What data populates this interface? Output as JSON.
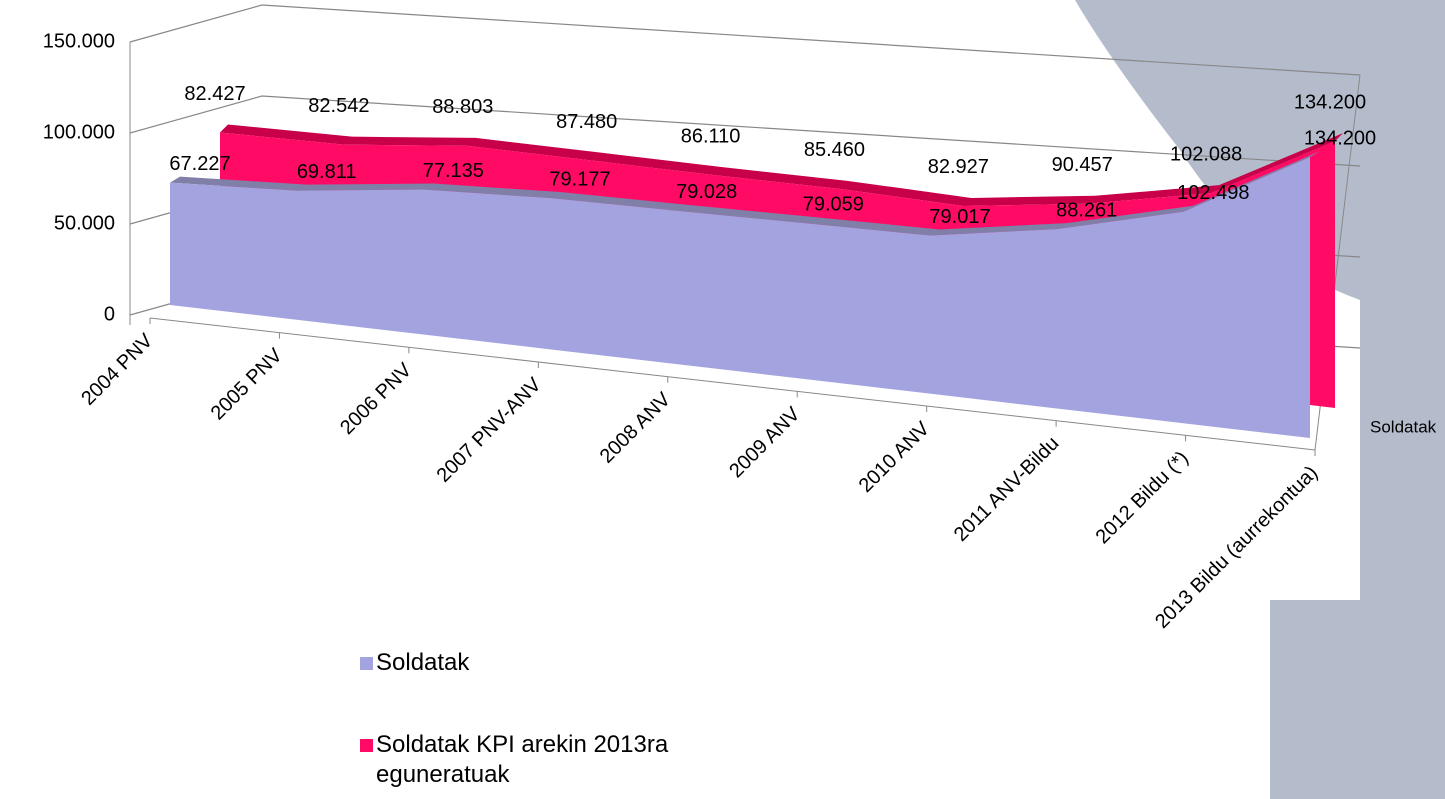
{
  "chart_data": {
    "type": "area3d",
    "categories": [
      "2004 PNV",
      "2005 PNV",
      "2006 PNV",
      "2007 PNV-ANV",
      "2008 ANV",
      "2009 ANV",
      "2010 ANV",
      "2011 ANV-Bildu",
      "2012 Bildu  (*)",
      "2013 Bildu  (aurrekontua)"
    ],
    "series": [
      {
        "name": "Soldatak",
        "color": "#a3a3e0",
        "values": [
          67227,
          69811,
          77135,
          79177,
          79028,
          79059,
          79017,
          88261,
          102498,
          134200
        ],
        "value_labels": [
          "67.227",
          "69.811",
          "77.135",
          "79.177",
          "79.028",
          "79.059",
          "79.017",
          "88.261",
          "102.498",
          "134.200"
        ]
      },
      {
        "name": "Soldatak KPI arekin 2013ra eguneratuak",
        "color": "#ff0a64",
        "values": [
          82427,
          82542,
          88803,
          87480,
          86110,
          85460,
          82927,
          90457,
          102088,
          134200
        ],
        "value_labels": [
          "82.427",
          "82.542",
          "88.803",
          "87.480",
          "86.110",
          "85.460",
          "82.927",
          "90.457",
          "102.088",
          "134.200"
        ]
      }
    ],
    "depth_axis_labels": [
      "Soldatak"
    ],
    "ylim": [
      0,
      150000
    ],
    "yticks": [
      {
        "value": 0,
        "label": "0"
      },
      {
        "value": 50000,
        "label": "50.000"
      },
      {
        "value": 100000,
        "label": "100.000"
      },
      {
        "value": 150000,
        "label": "150.000"
      }
    ],
    "grid": true
  }
}
